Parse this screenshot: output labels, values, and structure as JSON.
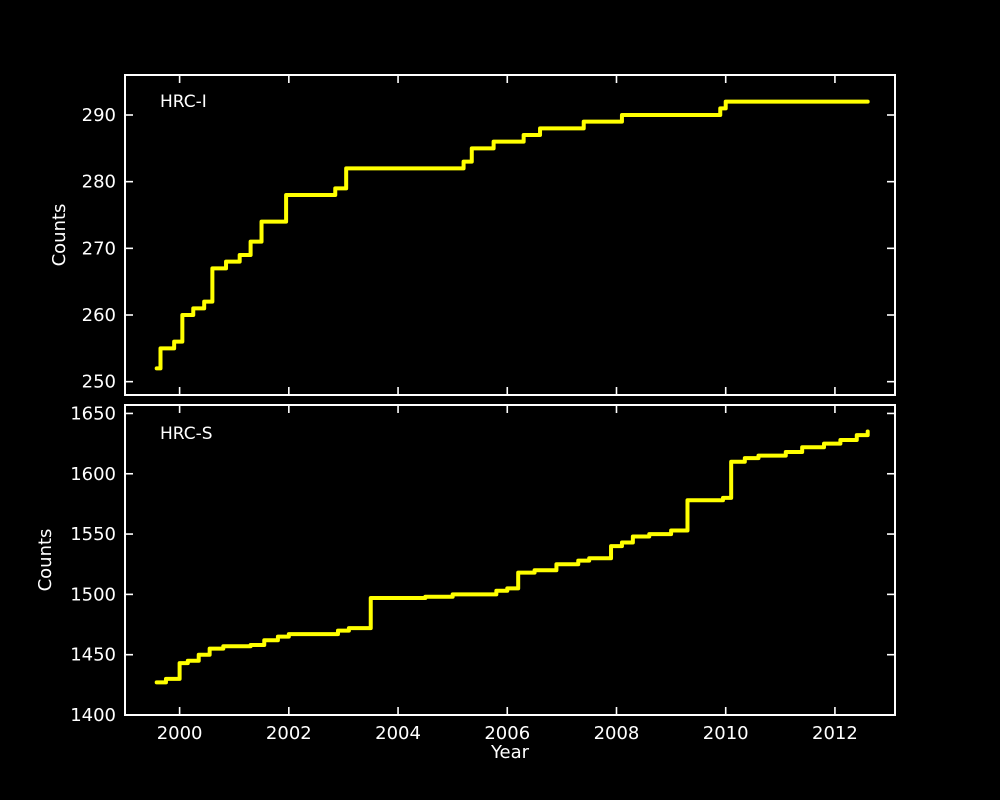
{
  "figure": {
    "background": "#000000",
    "axis_color": "#ffffff",
    "text_color": "#ffffff",
    "line_color": "#ffff00",
    "xlabel": "Year"
  },
  "chart_data": [
    {
      "type": "line",
      "title": "HRC-I",
      "ylabel": "Counts",
      "xlabel": "",
      "grid": false,
      "legend_position": "none",
      "step": "post",
      "xlim": [
        1999.0,
        2013.1
      ],
      "ylim": [
        248,
        296
      ],
      "xticks": [
        2000,
        2002,
        2004,
        2006,
        2008,
        2010,
        2012
      ],
      "yticks": [
        250,
        260,
        270,
        280,
        290
      ],
      "show_x_tick_labels": false,
      "points": [
        [
          1999.58,
          252
        ],
        [
          1999.65,
          255
        ],
        [
          1999.9,
          256
        ],
        [
          2000.05,
          260
        ],
        [
          2000.25,
          261
        ],
        [
          2000.45,
          262
        ],
        [
          2000.6,
          267
        ],
        [
          2000.85,
          268
        ],
        [
          2001.1,
          269
        ],
        [
          2001.3,
          271
        ],
        [
          2001.5,
          274
        ],
        [
          2001.95,
          278
        ],
        [
          2002.85,
          279
        ],
        [
          2003.05,
          282
        ],
        [
          2005.2,
          283
        ],
        [
          2005.35,
          285
        ],
        [
          2005.75,
          286
        ],
        [
          2006.3,
          287
        ],
        [
          2006.6,
          288
        ],
        [
          2007.4,
          289
        ],
        [
          2008.1,
          290
        ],
        [
          2009.9,
          291
        ],
        [
          2010.0,
          292
        ],
        [
          2012.6,
          292
        ]
      ]
    },
    {
      "type": "line",
      "title": "HRC-S",
      "ylabel": "Counts",
      "xlabel": "Year",
      "grid": false,
      "legend_position": "none",
      "step": "post",
      "xlim": [
        1999.0,
        2013.1
      ],
      "ylim": [
        1400,
        1657
      ],
      "xticks": [
        2000,
        2002,
        2004,
        2006,
        2008,
        2010,
        2012
      ],
      "yticks": [
        1400,
        1450,
        1500,
        1550,
        1600,
        1650
      ],
      "show_x_tick_labels": true,
      "points": [
        [
          1999.58,
          1427
        ],
        [
          1999.75,
          1430
        ],
        [
          2000.0,
          1443
        ],
        [
          2000.15,
          1445
        ],
        [
          2000.35,
          1450
        ],
        [
          2000.55,
          1455
        ],
        [
          2000.8,
          1457
        ],
        [
          2001.3,
          1458
        ],
        [
          2001.55,
          1462
        ],
        [
          2001.8,
          1465
        ],
        [
          2002.0,
          1467
        ],
        [
          2002.9,
          1470
        ],
        [
          2003.1,
          1472
        ],
        [
          2003.5,
          1497
        ],
        [
          2004.5,
          1498
        ],
        [
          2005.0,
          1500
        ],
        [
          2005.8,
          1503
        ],
        [
          2006.0,
          1505
        ],
        [
          2006.2,
          1518
        ],
        [
          2006.5,
          1520
        ],
        [
          2006.9,
          1525
        ],
        [
          2007.3,
          1528
        ],
        [
          2007.5,
          1530
        ],
        [
          2007.9,
          1540
        ],
        [
          2008.1,
          1543
        ],
        [
          2008.3,
          1548
        ],
        [
          2008.6,
          1550
        ],
        [
          2009.0,
          1553
        ],
        [
          2009.3,
          1578
        ],
        [
          2009.95,
          1580
        ],
        [
          2010.1,
          1610
        ],
        [
          2010.35,
          1613
        ],
        [
          2010.6,
          1615
        ],
        [
          2011.1,
          1618
        ],
        [
          2011.4,
          1622
        ],
        [
          2011.8,
          1625
        ],
        [
          2012.1,
          1628
        ],
        [
          2012.4,
          1632
        ],
        [
          2012.6,
          1635
        ]
      ]
    }
  ]
}
